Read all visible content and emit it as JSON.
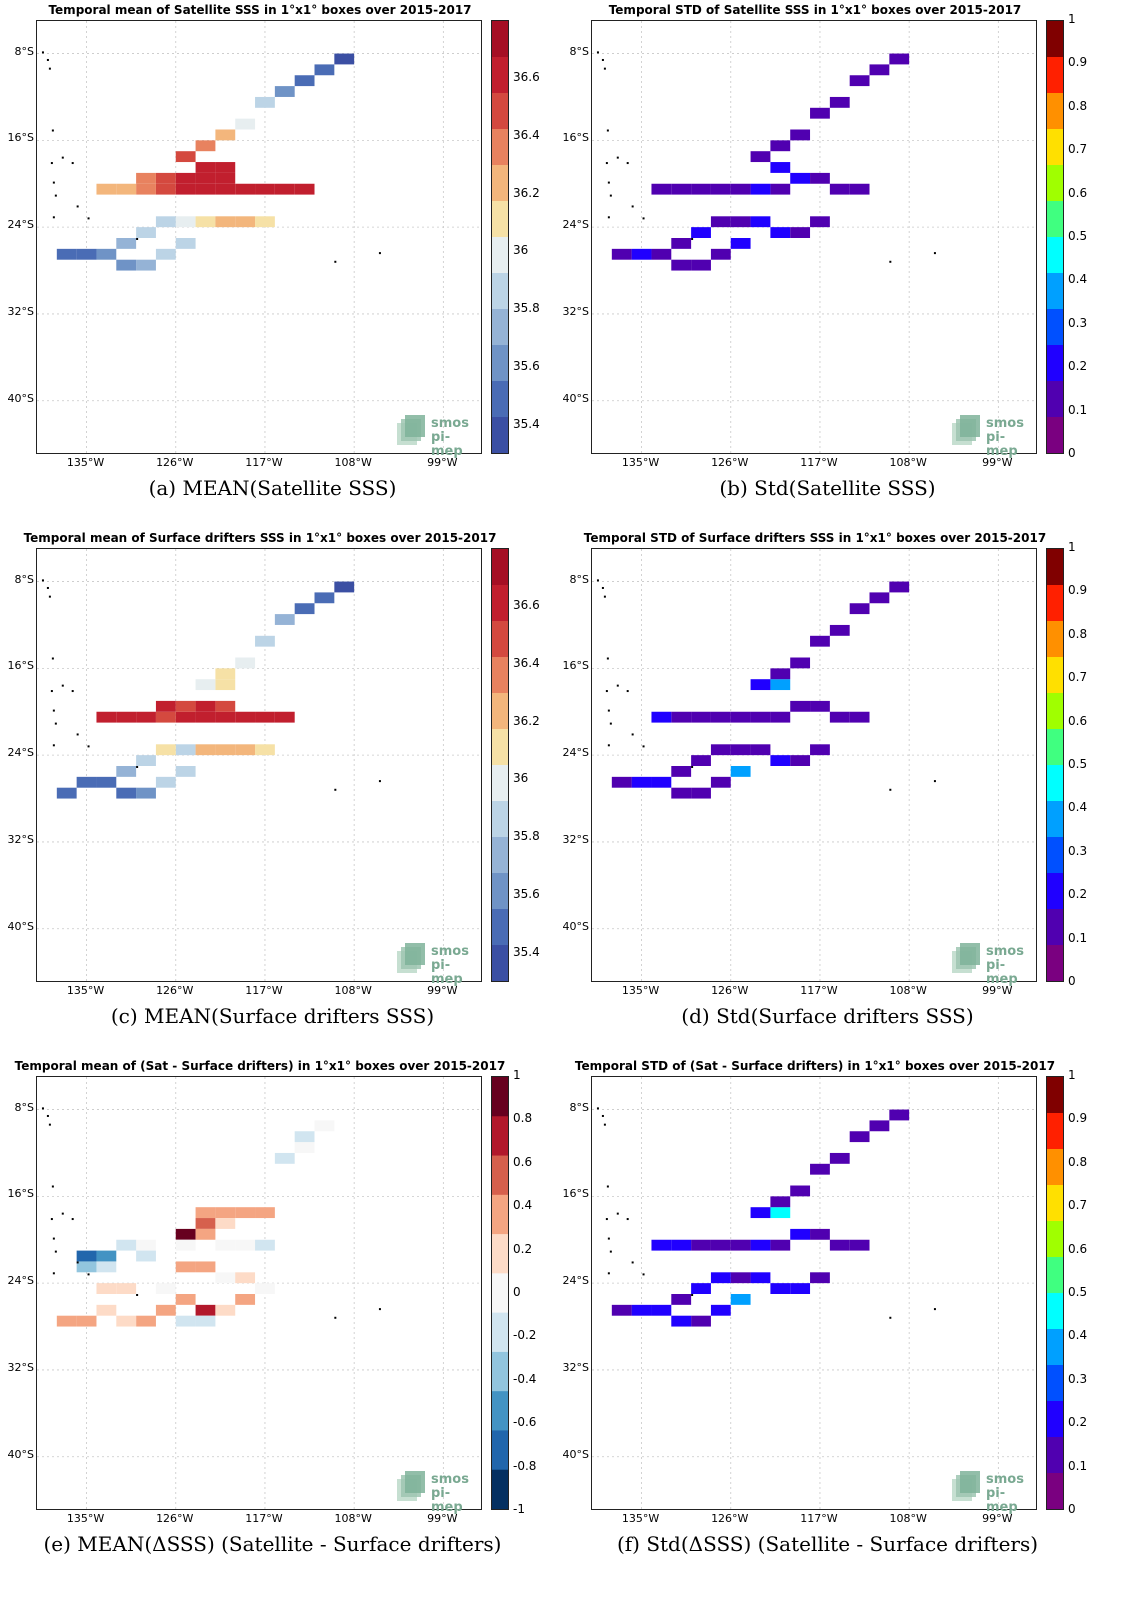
{
  "logo": {
    "line1": "smos",
    "line2": "pi-mep"
  },
  "axes": {
    "lat_ticks": [
      "8°S",
      "16°S",
      "24°S",
      "32°S",
      "40°S"
    ],
    "lon_ticks": [
      "135°W",
      "126°W",
      "117°W",
      "108°W",
      "99°W"
    ]
  },
  "chart_data": [
    {
      "type": "heatmap",
      "title": "Temporal mean of Satellite SSS in 1°x1° boxes over 2015-2017",
      "caption": "(a) MEAN(Satellite SSS)",
      "colorbar_ticks": [
        "36.6",
        "36.4",
        "36.2",
        "36",
        "35.8",
        "35.6",
        "35.4"
      ],
      "colorbar_range": [
        35.3,
        36.8
      ],
      "colormap": "RdBu_r",
      "cells": [
        [
          "122W",
          "20S",
          36.6
        ],
        [
          "124W",
          "20S",
          36.7
        ],
        [
          "126W",
          "20S",
          36.6
        ],
        [
          "128W",
          "20S",
          36.5
        ],
        [
          "130W",
          "20S",
          36.4
        ],
        [
          "132W",
          "20S",
          36.3
        ],
        [
          "134W",
          "20S",
          36.3
        ],
        [
          "120W",
          "20S",
          36.6
        ],
        [
          "118W",
          "20S",
          36.7
        ],
        [
          "116W",
          "20S",
          36.7
        ],
        [
          "114W",
          "20S",
          36.6
        ],
        [
          "122W",
          "19S",
          36.6
        ],
        [
          "124W",
          "19S",
          36.7
        ],
        [
          "126W",
          "19S",
          36.6
        ],
        [
          "128W",
          "19S",
          36.5
        ],
        [
          "130W",
          "19S",
          36.4
        ],
        [
          "122W",
          "18S",
          36.6
        ],
        [
          "124W",
          "18S",
          36.6
        ],
        [
          "126W",
          "17S",
          36.5
        ],
        [
          "124W",
          "16S",
          36.4
        ],
        [
          "122W",
          "15S",
          36.2
        ],
        [
          "120W",
          "14S",
          36.0
        ],
        [
          "118W",
          "12S",
          35.8
        ],
        [
          "116W",
          "11S",
          35.6
        ],
        [
          "114W",
          "10S",
          35.5
        ],
        [
          "112W",
          "9S",
          35.4
        ],
        [
          "110W",
          "8S",
          35.3
        ],
        [
          "126W",
          "23S",
          36.0
        ],
        [
          "128W",
          "23S",
          35.9
        ],
        [
          "130W",
          "24S",
          35.8
        ],
        [
          "132W",
          "25S",
          35.7
        ],
        [
          "134W",
          "26S",
          35.6
        ],
        [
          "136W",
          "26S",
          35.5
        ],
        [
          "138W",
          "26S",
          35.5
        ],
        [
          "124W",
          "23S",
          36.1
        ],
        [
          "122W",
          "23S",
          36.2
        ],
        [
          "120W",
          "23S",
          36.2
        ],
        [
          "118W",
          "23S",
          36.1
        ],
        [
          "126W",
          "25S",
          35.9
        ],
        [
          "128W",
          "26S",
          35.8
        ],
        [
          "130W",
          "27S",
          35.7
        ],
        [
          "132W",
          "27S",
          35.6
        ]
      ]
    },
    {
      "type": "heatmap",
      "title": "Temporal STD of Satellite SSS in 1°x1° boxes over 2015-2017",
      "caption": "(b) Std(Satellite SSS)",
      "colorbar_ticks": [
        "1",
        "0.9",
        "0.8",
        "0.7",
        "0.6",
        "0.5",
        "0.4",
        "0.3",
        "0.2",
        "0.1",
        "0"
      ],
      "colorbar_range": [
        0,
        1
      ],
      "colormap": "jet",
      "cells": [
        [
          "122W",
          "20S",
          0.12
        ],
        [
          "124W",
          "20S",
          0.15
        ],
        [
          "126W",
          "20S",
          0.1
        ],
        [
          "128W",
          "20S",
          0.12
        ],
        [
          "130W",
          "20S",
          0.08
        ],
        [
          "132W",
          "20S",
          0.1
        ],
        [
          "134W",
          "20S",
          0.12
        ],
        [
          "120W",
          "19S",
          0.14
        ],
        [
          "118W",
          "19S",
          0.1
        ],
        [
          "116W",
          "20S",
          0.08
        ],
        [
          "114W",
          "20S",
          0.06
        ],
        [
          "122W",
          "18S",
          0.16
        ],
        [
          "124W",
          "17S",
          0.12
        ],
        [
          "122W",
          "16S",
          0.1
        ],
        [
          "120W",
          "15S",
          0.08
        ],
        [
          "118W",
          "13S",
          0.06
        ],
        [
          "116W",
          "12S",
          0.05
        ],
        [
          "114W",
          "10S",
          0.06
        ],
        [
          "112W",
          "9S",
          0.07
        ],
        [
          "110W",
          "8S",
          0.09
        ],
        [
          "126W",
          "23S",
          0.1
        ],
        [
          "128W",
          "23S",
          0.12
        ],
        [
          "130W",
          "24S",
          0.15
        ],
        [
          "132W",
          "25S",
          0.1
        ],
        [
          "134W",
          "26S",
          0.12
        ],
        [
          "136W",
          "26S",
          0.15
        ],
        [
          "138W",
          "26S",
          0.1
        ],
        [
          "124W",
          "23S",
          0.14
        ],
        [
          "122W",
          "24S",
          0.2
        ],
        [
          "120W",
          "24S",
          0.12
        ],
        [
          "118W",
          "23S",
          0.1
        ],
        [
          "126W",
          "25S",
          0.14
        ],
        [
          "128W",
          "26S",
          0.08
        ],
        [
          "130W",
          "27S",
          0.1
        ],
        [
          "132W",
          "27S",
          0.12
        ]
      ]
    },
    {
      "type": "heatmap",
      "title": "Temporal mean of Surface drifters SSS in 1°x1° boxes over 2015-2017",
      "caption": "(c) MEAN(Surface drifters SSS)",
      "colorbar_ticks": [
        "36.6",
        "36.4",
        "36.2",
        "36",
        "35.8",
        "35.6",
        "35.4"
      ],
      "colorbar_range": [
        35.3,
        36.8
      ],
      "colormap": "RdBu_r",
      "cells": [
        [
          "122W",
          "20S",
          36.7
        ],
        [
          "124W",
          "20S",
          36.6
        ],
        [
          "126W",
          "20S",
          36.6
        ],
        [
          "128W",
          "20S",
          36.5
        ],
        [
          "130W",
          "20S",
          36.6
        ],
        [
          "132W",
          "20S",
          36.7
        ],
        [
          "134W",
          "20S",
          36.6
        ],
        [
          "120W",
          "20S",
          36.6
        ],
        [
          "118W",
          "20S",
          36.7
        ],
        [
          "116W",
          "20S",
          36.6
        ],
        [
          "122W",
          "19S",
          36.5
        ],
        [
          "124W",
          "19S",
          36.6
        ],
        [
          "126W",
          "19S",
          36.5
        ],
        [
          "128W",
          "19S",
          36.6
        ],
        [
          "122W",
          "17S",
          36.1
        ],
        [
          "124W",
          "17S",
          36.0
        ],
        [
          "122W",
          "16S",
          36.1
        ],
        [
          "120W",
          "15S",
          36.0
        ],
        [
          "118W",
          "13S",
          35.9
        ],
        [
          "116W",
          "11S",
          35.7
        ],
        [
          "114W",
          "10S",
          35.5
        ],
        [
          "112W",
          "9S",
          35.4
        ],
        [
          "110W",
          "8S",
          35.3
        ],
        [
          "126W",
          "23S",
          35.9
        ],
        [
          "128W",
          "23S",
          36.1
        ],
        [
          "130W",
          "24S",
          35.8
        ],
        [
          "132W",
          "25S",
          35.7
        ],
        [
          "134W",
          "26S",
          35.5
        ],
        [
          "136W",
          "26S",
          35.4
        ],
        [
          "138W",
          "27S",
          35.4
        ],
        [
          "124W",
          "23S",
          36.2
        ],
        [
          "122W",
          "23S",
          36.2
        ],
        [
          "120W",
          "23S",
          36.3
        ],
        [
          "118W",
          "23S",
          36.1
        ],
        [
          "126W",
          "25S",
          35.9
        ],
        [
          "128W",
          "26S",
          35.8
        ],
        [
          "130W",
          "27S",
          35.6
        ],
        [
          "132W",
          "27S",
          35.5
        ]
      ]
    },
    {
      "type": "heatmap",
      "title": "Temporal STD of Surface drifters SSS in 1°x1° boxes over 2015-2017",
      "caption": "(d) Std(Surface drifters SSS)",
      "colorbar_ticks": [
        "1",
        "0.9",
        "0.8",
        "0.7",
        "0.6",
        "0.5",
        "0.4",
        "0.3",
        "0.2",
        "0.1",
        "0"
      ],
      "colorbar_range": [
        0,
        1
      ],
      "colormap": "jet",
      "cells": [
        [
          "122W",
          "20S",
          0.1
        ],
        [
          "124W",
          "20S",
          0.12
        ],
        [
          "126W",
          "20S",
          0.08
        ],
        [
          "128W",
          "20S",
          0.1
        ],
        [
          "130W",
          "20S",
          0.08
        ],
        [
          "132W",
          "20S",
          0.1
        ],
        [
          "134W",
          "20S",
          0.15
        ],
        [
          "120W",
          "19S",
          0.12
        ],
        [
          "118W",
          "19S",
          0.1
        ],
        [
          "116W",
          "20S",
          0.07
        ],
        [
          "114W",
          "20S",
          0.06
        ],
        [
          "122W",
          "17S",
          0.4
        ],
        [
          "124W",
          "17S",
          0.15
        ],
        [
          "122W",
          "16S",
          0.1
        ],
        [
          "120W",
          "15S",
          0.06
        ],
        [
          "118W",
          "13S",
          0.05
        ],
        [
          "116W",
          "12S",
          0.05
        ],
        [
          "114W",
          "10S",
          0.05
        ],
        [
          "112W",
          "9S",
          0.06
        ],
        [
          "110W",
          "8S",
          0.07
        ],
        [
          "126W",
          "23S",
          0.08
        ],
        [
          "128W",
          "23S",
          0.1
        ],
        [
          "130W",
          "24S",
          0.12
        ],
        [
          "132W",
          "25S",
          0.1
        ],
        [
          "134W",
          "26S",
          0.15
        ],
        [
          "136W",
          "26S",
          0.18
        ],
        [
          "138W",
          "26S",
          0.1
        ],
        [
          "124W",
          "23S",
          0.1
        ],
        [
          "122W",
          "24S",
          0.14
        ],
        [
          "120W",
          "24S",
          0.1
        ],
        [
          "118W",
          "23S",
          0.08
        ],
        [
          "126W",
          "25S",
          0.34
        ],
        [
          "128W",
          "26S",
          0.12
        ],
        [
          "130W",
          "27S",
          0.08
        ],
        [
          "132W",
          "27S",
          0.1
        ]
      ]
    },
    {
      "type": "heatmap",
      "title": "Temporal mean of (Sat - Surface drifters) in 1°x1° boxes over 2015-2017",
      "caption": "(e) MEAN(ΔSSS) (Satellite - Surface drifters)",
      "colorbar_ticks": [
        "1",
        "0.8",
        "0.6",
        "0.4",
        "0.2",
        "0",
        "-0.2",
        "-0.4",
        "-0.6",
        "-0.8",
        "-1"
      ],
      "colorbar_range": [
        -1,
        1
      ],
      "colormap": "RdBu_r",
      "cells": [
        [
          "122W",
          "17S",
          0.35
        ],
        [
          "124W",
          "17S",
          0.4
        ],
        [
          "120W",
          "17S",
          0.45
        ],
        [
          "118W",
          "17S",
          0.3
        ],
        [
          "124W",
          "18S",
          0.6
        ],
        [
          "122W",
          "18S",
          0.2
        ],
        [
          "126W",
          "19S",
          0.9
        ],
        [
          "124W",
          "19S",
          0.3
        ],
        [
          "116W",
          "12S",
          -0.2
        ],
        [
          "114W",
          "11S",
          -0.1
        ],
        [
          "112W",
          "9S",
          -0.1
        ],
        [
          "114W",
          "10S",
          -0.15
        ],
        [
          "130W",
          "20S",
          -0.1
        ],
        [
          "132W",
          "20S",
          -0.2
        ],
        [
          "134W",
          "21S",
          -0.6
        ],
        [
          "136W",
          "21S",
          -0.8
        ],
        [
          "136W",
          "22S",
          -0.5
        ],
        [
          "134W",
          "22S",
          -0.3
        ],
        [
          "130W",
          "21S",
          -0.15
        ],
        [
          "126W",
          "20S",
          -0.1
        ],
        [
          "122W",
          "20S",
          -0.1
        ],
        [
          "120W",
          "20S",
          -0.1
        ],
        [
          "118W",
          "20S",
          -0.15
        ],
        [
          "126W",
          "22S",
          0.3
        ],
        [
          "124W",
          "22S",
          0.35
        ],
        [
          "122W",
          "23S",
          -0.1
        ],
        [
          "120W",
          "23S",
          0.2
        ],
        [
          "118W",
          "24S",
          -0.1
        ],
        [
          "126W",
          "25S",
          0.3
        ],
        [
          "128W",
          "26S",
          0.4
        ],
        [
          "130W",
          "27S",
          0.3
        ],
        [
          "132W",
          "27S",
          0.2
        ],
        [
          "134W",
          "26S",
          0.25
        ],
        [
          "136W",
          "27S",
          0.45
        ],
        [
          "138W",
          "27S",
          0.3
        ],
        [
          "124W",
          "26S",
          0.8
        ],
        [
          "122W",
          "26S",
          0.2
        ],
        [
          "120W",
          "25S",
          0.3
        ],
        [
          "124W",
          "27S",
          -0.15
        ],
        [
          "126W",
          "27S",
          -0.2
        ],
        [
          "128W",
          "24S",
          -0.1
        ],
        [
          "132W",
          "24S",
          0.2
        ],
        [
          "134W",
          "24S",
          0.15
        ]
      ]
    },
    {
      "type": "heatmap",
      "title": "Temporal STD of (Sat - Surface drifters) in 1°x1° boxes over 2015-2017",
      "caption": "(f) Std(ΔSSS) (Satellite - Surface drifters)",
      "colorbar_ticks": [
        "1",
        "0.9",
        "0.8",
        "0.7",
        "0.6",
        "0.5",
        "0.4",
        "0.3",
        "0.2",
        "0.1",
        "0"
      ],
      "colorbar_range": [
        0,
        1
      ],
      "colormap": "jet",
      "cells": [
        [
          "122W",
          "20S",
          0.12
        ],
        [
          "124W",
          "20S",
          0.15
        ],
        [
          "126W",
          "20S",
          0.1
        ],
        [
          "128W",
          "20S",
          0.12
        ],
        [
          "130W",
          "20S",
          0.12
        ],
        [
          "132W",
          "20S",
          0.14
        ],
        [
          "134W",
          "20S",
          0.18
        ],
        [
          "120W",
          "19S",
          0.14
        ],
        [
          "118W",
          "19S",
          0.1
        ],
        [
          "116W",
          "20S",
          0.1
        ],
        [
          "114W",
          "20S",
          0.08
        ],
        [
          "122W",
          "17S",
          0.45
        ],
        [
          "124W",
          "17S",
          0.18
        ],
        [
          "122W",
          "16S",
          0.12
        ],
        [
          "120W",
          "15S",
          0.08
        ],
        [
          "118W",
          "13S",
          0.06
        ],
        [
          "116W",
          "12S",
          0.06
        ],
        [
          "114W",
          "10S",
          0.06
        ],
        [
          "112W",
          "9S",
          0.07
        ],
        [
          "110W",
          "8S",
          0.09
        ],
        [
          "126W",
          "23S",
          0.12
        ],
        [
          "128W",
          "23S",
          0.14
        ],
        [
          "130W",
          "24S",
          0.18
        ],
        [
          "132W",
          "25S",
          0.12
        ],
        [
          "134W",
          "26S",
          0.16
        ],
        [
          "136W",
          "26S",
          0.18
        ],
        [
          "138W",
          "26S",
          0.12
        ],
        [
          "124W",
          "23S",
          0.14
        ],
        [
          "122W",
          "24S",
          0.22
        ],
        [
          "120W",
          "24S",
          0.16
        ],
        [
          "118W",
          "23S",
          0.12
        ],
        [
          "126W",
          "25S",
          0.36
        ],
        [
          "128W",
          "26S",
          0.16
        ],
        [
          "130W",
          "27S",
          0.12
        ],
        [
          "132W",
          "27S",
          0.14
        ]
      ]
    }
  ]
}
